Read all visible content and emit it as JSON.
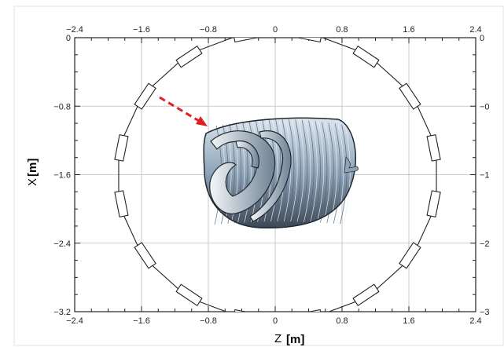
{
  "figure": {
    "x_axis": {
      "variable": "Z",
      "unit": "[m]",
      "ticks": [
        "−2.4",
        "−1.6",
        "−0.8",
        "0",
        "0.8",
        "1.6",
        "2.4"
      ]
    },
    "y_axis": {
      "variable": "X",
      "unit": "[m]",
      "ticks": [
        "0",
        "−0.8",
        "−1.6",
        "−2.4",
        "−3.2"
      ],
      "right_ticks_partial": [
        "0",
        "−0",
        "−1",
        "−2",
        "−3"
      ]
    },
    "colors": {
      "arrow": "#e02020",
      "wall": "#222222",
      "grid": "#bdbdbd",
      "coil": "#9fb4c8"
    },
    "elements": [
      "vacuum-vessel-cross-section",
      "helical-coil-rendering",
      "red-dashed-arrow"
    ]
  }
}
